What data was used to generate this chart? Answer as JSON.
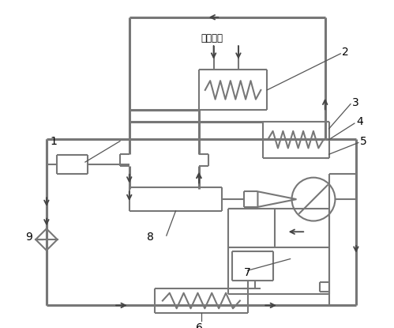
{
  "bg": "#ffffff",
  "lc": "#777777",
  "lw": 1.5,
  "tlw": 2.2,
  "cooling_label": "接冷却水",
  "label_fs": 10,
  "small_fs": 8.5
}
